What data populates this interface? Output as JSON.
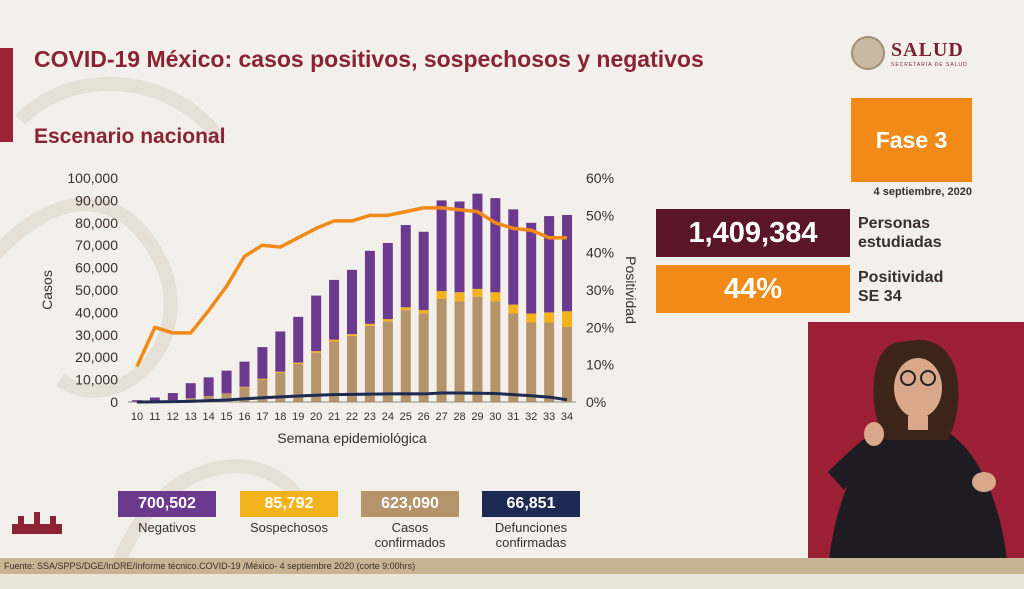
{
  "header": {
    "title": "COVID-19 México: casos positivos, sospechosos y negativos",
    "subtitle": "Escenario nacional"
  },
  "logo": {
    "name": "SALUD",
    "subtitle": "SECRETARÍA DE SALUD"
  },
  "fase": {
    "label": "Fase 3",
    "date": "4 septiembre, 2020"
  },
  "stats": {
    "personas_value": "1,409,384",
    "personas_label_1": "Personas",
    "personas_label_2": "estudiadas",
    "positividad_value": "44%",
    "positividad_label_1": "Positividad",
    "positividad_label_2": "SE 34"
  },
  "legend": {
    "negativos_value": "700,502",
    "negativos_label": "Negativos",
    "sospechosos_value": "85,792",
    "sospechosos_label": "Sospechosos",
    "confirmados_value": "623,090",
    "confirmados_label_1": "Casos",
    "confirmados_label_2": "confirmados",
    "defunciones_value": "66,851",
    "defunciones_label_1": "Defunciones",
    "defunciones_label_2": "confirmadas"
  },
  "footer": {
    "fuente": "Fuente: SSA/SPPS/DGE/InDRE/Informe técnico.COVID-19 /México- 4 septiembre 2020 (corte 9:00hrs)"
  },
  "colors": {
    "negativos": "#6b3a8f",
    "sospechosos": "#f2b21c",
    "confirmados": "#b5936b",
    "defunciones": "#1d2b52",
    "positividad": "#f28a18",
    "accent": "#8a2333"
  },
  "chart_data": {
    "type": "bar",
    "stacked": true,
    "xlabel": "Semana epidemiológica",
    "ylabel": "Casos",
    "y2label": "Positividad",
    "ylim": [
      0,
      100000
    ],
    "y2lim": [
      0,
      60
    ],
    "yticks": [
      "0",
      "10,000",
      "20,000",
      "30,000",
      "40,000",
      "50,000",
      "60,000",
      "70,000",
      "80,000",
      "90,000",
      "100,000"
    ],
    "y2ticks": [
      "0%",
      "10%",
      "20%",
      "30%",
      "40%",
      "50%",
      "60%"
    ],
    "categories": [
      "10",
      "11",
      "12",
      "13",
      "14",
      "15",
      "16",
      "17",
      "18",
      "19",
      "20",
      "21",
      "22",
      "23",
      "24",
      "25",
      "26",
      "27",
      "28",
      "29",
      "30",
      "31",
      "32",
      "33",
      "34"
    ],
    "series": [
      {
        "name": "Casos confirmados",
        "values": [
          100,
          400,
          800,
          1600,
          2500,
          3600,
          6500,
          10000,
          13000,
          17000,
          22000,
          27000,
          29500,
          34000,
          36000,
          41000,
          39500,
          46000,
          45000,
          47000,
          45000,
          39500,
          35500,
          35500,
          33500
        ]
      },
      {
        "name": "Sospechosos",
        "values": [
          20,
          40,
          60,
          80,
          120,
          200,
          300,
          400,
          500,
          600,
          700,
          800,
          800,
          900,
          1000,
          1300,
          1500,
          3500,
          4000,
          3500,
          4000,
          4000,
          4000,
          4500,
          7000
        ]
      },
      {
        "name": "Negativos",
        "values": [
          680,
          1560,
          3140,
          6720,
          8380,
          10200,
          11200,
          14100,
          18000,
          20400,
          24800,
          26700,
          28700,
          32600,
          34000,
          36700,
          35000,
          40500,
          40500,
          42500,
          42000,
          42500,
          40500,
          43000,
          43000
        ]
      },
      {
        "name": "Defunciones confirmadas",
        "values": [
          0,
          50,
          150,
          300,
          600,
          900,
          1400,
          1900,
          2300,
          2700,
          3000,
          3300,
          3400,
          3500,
          3600,
          3700,
          3600,
          4000,
          4000,
          3900,
          3800,
          3300,
          2800,
          2200,
          1000
        ]
      },
      {
        "name": "Positividad",
        "axis": "y2",
        "values": [
          9.5,
          20,
          18.5,
          18.5,
          24.5,
          31,
          39,
          42,
          41.5,
          44,
          46.5,
          48.5,
          48.5,
          50,
          50,
          51,
          52,
          52,
          51.5,
          51,
          48,
          46.5,
          46,
          44,
          44
        ]
      }
    ],
    "grid": false
  }
}
